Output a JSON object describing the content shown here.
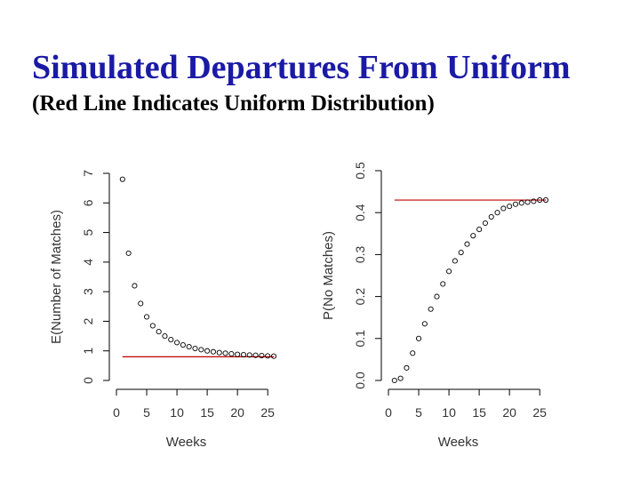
{
  "slide": {
    "title": "Simulated Departures From Uniform",
    "subtitle": "(Red Line Indicates Uniform Distribution)"
  },
  "colors": {
    "title": "#1a1aa6",
    "uniform_line": "#c00000",
    "points": "#000000"
  },
  "chart_data": [
    {
      "type": "scatter",
      "xlabel": "Weeks",
      "ylabel": "E(Number of Matches)",
      "xlim": [
        0,
        26
      ],
      "ylim": [
        0,
        7
      ],
      "xticks": [
        0,
        5,
        10,
        15,
        20,
        25
      ],
      "yticks": [
        0,
        1,
        2,
        3,
        4,
        5,
        6,
        7
      ],
      "grid": false,
      "x": [
        1,
        2,
        3,
        4,
        5,
        6,
        7,
        8,
        9,
        10,
        11,
        12,
        13,
        14,
        15,
        16,
        17,
        18,
        19,
        20,
        21,
        22,
        23,
        24,
        25,
        26
      ],
      "y": [
        6.8,
        4.3,
        3.2,
        2.6,
        2.15,
        1.85,
        1.65,
        1.5,
        1.38,
        1.28,
        1.2,
        1.14,
        1.08,
        1.04,
        1.0,
        0.97,
        0.94,
        0.92,
        0.9,
        0.88,
        0.87,
        0.86,
        0.85,
        0.84,
        0.83,
        0.82
      ],
      "reference_line": {
        "label": "Uniform",
        "y": 0.8,
        "x_range": [
          1,
          26
        ]
      }
    },
    {
      "type": "scatter",
      "xlabel": "Weeks",
      "ylabel": "P(No Matches)",
      "xlim": [
        0,
        26
      ],
      "ylim": [
        0,
        0.5
      ],
      "xticks": [
        0,
        5,
        10,
        15,
        20,
        25
      ],
      "yticks": [
        "0.0",
        "0.1",
        "0.2",
        "0.3",
        "0.4",
        "0.5"
      ],
      "grid": false,
      "x": [
        1,
        2,
        3,
        4,
        5,
        6,
        7,
        8,
        9,
        10,
        11,
        12,
        13,
        14,
        15,
        16,
        17,
        18,
        19,
        20,
        21,
        22,
        23,
        24,
        25,
        26
      ],
      "y": [
        0.0,
        0.005,
        0.03,
        0.065,
        0.1,
        0.135,
        0.17,
        0.2,
        0.23,
        0.26,
        0.285,
        0.305,
        0.325,
        0.345,
        0.36,
        0.375,
        0.39,
        0.4,
        0.41,
        0.415,
        0.42,
        0.423,
        0.425,
        0.427,
        0.43,
        0.43
      ],
      "reference_line": {
        "label": "Uniform",
        "y": 0.43,
        "x_range": [
          1,
          26
        ]
      }
    }
  ]
}
